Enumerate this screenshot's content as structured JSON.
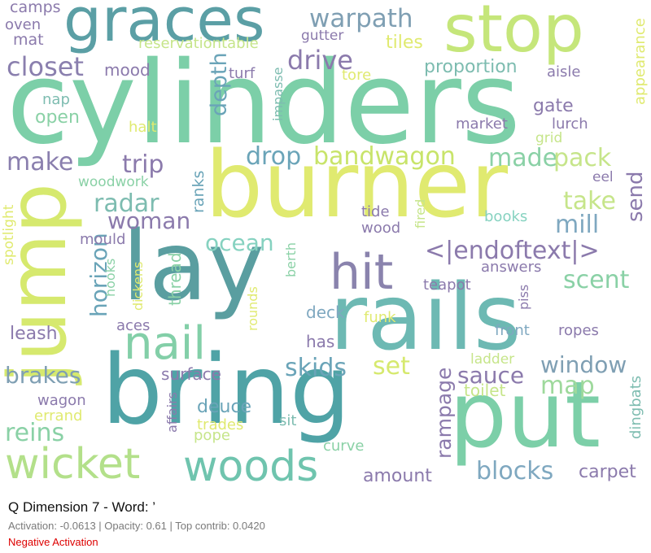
{
  "title": "Q Dimension 7 - Word: ’",
  "info": "Activation: -0.0613 | Opacity: 0.61 | Top contrib: 0.0420",
  "status": "Negative Activation",
  "status_color": "#dd0000",
  "words": [
    {
      "text": "cylinders",
      "color": "#7ccfa8",
      "vertical": false
    },
    {
      "text": "burner",
      "color": "#e0ea70",
      "vertical": false
    },
    {
      "text": "lay",
      "color": "#5a9ea0",
      "vertical": false
    },
    {
      "text": "rails",
      "color": "#6db9b3",
      "vertical": false
    },
    {
      "text": "bring",
      "color": "#4fa3a6",
      "vertical": false
    },
    {
      "text": "put",
      "color": "#7ccfa8",
      "vertical": false
    },
    {
      "text": "jump",
      "color": "#d6e96e",
      "vertical": true
    },
    {
      "text": "graces",
      "color": "#5b9fa5",
      "vertical": false
    },
    {
      "text": "stop",
      "color": "#c5e67a",
      "vertical": false
    },
    {
      "text": "wicket",
      "color": "#b3e08a",
      "vertical": false
    },
    {
      "text": "woods",
      "color": "#6fc4ae",
      "vertical": false
    },
    {
      "text": "hit",
      "color": "#8a83ad",
      "vertical": false
    },
    {
      "text": "nail",
      "color": "#83cfa8",
      "vertical": false
    },
    {
      "text": "closet",
      "color": "#8a7fae",
      "vertical": false
    },
    {
      "text": "drive",
      "color": "#8b7aac",
      "vertical": false
    },
    {
      "text": "warpath",
      "color": "#7f9fb3",
      "vertical": false
    },
    {
      "text": "bandwagon",
      "color": "#c8e46a",
      "vertical": false
    },
    {
      "text": "drop",
      "color": "#6aa4b8",
      "vertical": false
    },
    {
      "text": "made",
      "color": "#8ad1a6",
      "vertical": false
    },
    {
      "text": "pack",
      "color": "#c6e58a",
      "vertical": false
    },
    {
      "text": "trip",
      "color": "#8b7aac",
      "vertical": false
    },
    {
      "text": "make",
      "color": "#8a7fae",
      "vertical": false
    },
    {
      "text": "radar",
      "color": "#7dbcb0",
      "vertical": false
    },
    {
      "text": "woman",
      "color": "#8b7aac",
      "vertical": false
    },
    {
      "text": "take",
      "color": "#c6e58a",
      "vertical": false
    },
    {
      "text": "mill",
      "color": "#7fa8c0",
      "vertical": false
    },
    {
      "text": "send",
      "color": "#8b7aac",
      "vertical": true
    },
    {
      "text": "ocean",
      "color": "#86d2c0",
      "vertical": false
    },
    {
      "text": "<|endoftext|>",
      "color": "#8b7aac",
      "vertical": false
    },
    {
      "text": "scent",
      "color": "#8ad1a6",
      "vertical": false
    },
    {
      "text": "window",
      "color": "#7f9fb3",
      "vertical": false
    },
    {
      "text": "sauce",
      "color": "#8b7aac",
      "vertical": false
    },
    {
      "text": "map",
      "color": "#9ed99c",
      "vertical": false
    },
    {
      "text": "skids",
      "color": "#6aa4b8",
      "vertical": false
    },
    {
      "text": "set",
      "color": "#d6e96e",
      "vertical": false
    },
    {
      "text": "brakes",
      "color": "#7f9fb3",
      "vertical": false
    },
    {
      "text": "reins",
      "color": "#8ad1a6",
      "vertical": false
    },
    {
      "text": "blocks",
      "color": "#7fa8c0",
      "vertical": false
    },
    {
      "text": "rampage",
      "color": "#8b7aac",
      "vertical": true
    },
    {
      "text": "depth",
      "color": "#6aa4b8",
      "vertical": true
    },
    {
      "text": "horizon",
      "color": "#6aa4b8",
      "vertical": true
    },
    {
      "text": "deuce",
      "color": "#6aa4b8",
      "vertical": false
    },
    {
      "text": "amount",
      "color": "#8b7aac",
      "vertical": false
    },
    {
      "text": "carpet",
      "color": "#8b7aac",
      "vertical": false
    },
    {
      "text": "leash",
      "color": "#8b7aac",
      "vertical": false
    },
    {
      "text": "surface",
      "color": "#8b7aac",
      "vertical": false
    },
    {
      "text": "has",
      "color": "#8b7aac",
      "vertical": false
    },
    {
      "text": "toilet",
      "color": "#c6e58a",
      "vertical": false
    },
    {
      "text": "wagon",
      "color": "#8b7aac",
      "vertical": false
    },
    {
      "text": "gate",
      "color": "#8b7aac",
      "vertical": false
    },
    {
      "text": "proportion",
      "color": "#7dbcb0",
      "vertical": false
    },
    {
      "text": "tiles",
      "color": "#e0ea70",
      "vertical": false
    },
    {
      "text": "camps",
      "color": "#8b7aac",
      "vertical": false
    },
    {
      "text": "oven",
      "color": "#8b7aac",
      "vertical": false
    },
    {
      "text": "mat",
      "color": "#8b7aac",
      "vertical": false
    },
    {
      "text": "mood",
      "color": "#8b7aac",
      "vertical": false
    },
    {
      "text": "reservationtable",
      "color": "#c6e58a",
      "vertical": false
    },
    {
      "text": "gutter",
      "color": "#8b7aac",
      "vertical": false
    },
    {
      "text": "turf",
      "color": "#8b7aac",
      "vertical": false
    },
    {
      "text": "tore",
      "color": "#e0ea70",
      "vertical": false
    },
    {
      "text": "aisle",
      "color": "#8b7aac",
      "vertical": false
    },
    {
      "text": "nap",
      "color": "#7dbcb0",
      "vertical": false
    },
    {
      "text": "open",
      "color": "#8ad1a6",
      "vertical": false
    },
    {
      "text": "halt",
      "color": "#e0ea70",
      "vertical": false
    },
    {
      "text": "impasse",
      "color": "#7dbcb0",
      "vertical": true
    },
    {
      "text": "market",
      "color": "#8b7aac",
      "vertical": false
    },
    {
      "text": "lurch",
      "color": "#8b7aac",
      "vertical": false
    },
    {
      "text": "grid",
      "color": "#c6e58a",
      "vertical": false
    },
    {
      "text": "appearance",
      "color": "#e0ea70",
      "vertical": true
    },
    {
      "text": "eel",
      "color": "#8b7aac",
      "vertical": false
    },
    {
      "text": "woodwork",
      "color": "#8ad1a6",
      "vertical": false
    },
    {
      "text": "ranks",
      "color": "#6aa4b8",
      "vertical": true
    },
    {
      "text": "tide",
      "color": "#8b7aac",
      "vertical": false
    },
    {
      "text": "wood",
      "color": "#8b7aac",
      "vertical": false
    },
    {
      "text": "fired",
      "color": "#c6e58a",
      "vertical": true
    },
    {
      "text": "books",
      "color": "#86d2c0",
      "vertical": false
    },
    {
      "text": "mould",
      "color": "#8b7aac",
      "vertical": false
    },
    {
      "text": "spotlight",
      "color": "#e0ea70",
      "vertical": true
    },
    {
      "text": "hooks",
      "color": "#8ad1a6",
      "vertical": true
    },
    {
      "text": "dickens",
      "color": "#e0ea70",
      "vertical": true
    },
    {
      "text": "thread",
      "color": "#8ad1a6",
      "vertical": true
    },
    {
      "text": "berth",
      "color": "#8ad1a6",
      "vertical": true
    },
    {
      "text": "answers",
      "color": "#8b7aac",
      "vertical": false
    },
    {
      "text": "teapot",
      "color": "#8b7aac",
      "vertical": false
    },
    {
      "text": "piss",
      "color": "#8b7aac",
      "vertical": true
    },
    {
      "text": "rounds",
      "color": "#e0ea70",
      "vertical": true
    },
    {
      "text": "deck",
      "color": "#7fa8c0",
      "vertical": false
    },
    {
      "text": "funk",
      "color": "#e0ea70",
      "vertical": false
    },
    {
      "text": "aces",
      "color": "#8b7aac",
      "vertical": false
    },
    {
      "text": "front",
      "color": "#7fa8c0",
      "vertical": false
    },
    {
      "text": "ropes",
      "color": "#8b7aac",
      "vertical": false
    },
    {
      "text": "ladder",
      "color": "#c6e58a",
      "vertical": false
    },
    {
      "text": "dingbats",
      "color": "#7dbcb0",
      "vertical": true
    },
    {
      "text": "affairs",
      "color": "#8b7aac",
      "vertical": true
    },
    {
      "text": "trades",
      "color": "#e0ea70",
      "vertical": false
    },
    {
      "text": "pope",
      "color": "#c6e58a",
      "vertical": false
    },
    {
      "text": "sit",
      "color": "#7dbcb0",
      "vertical": false
    },
    {
      "text": "curve",
      "color": "#8ad1a6",
      "vertical": false
    },
    {
      "text": "errand",
      "color": "#e0ea70",
      "vertical": false
    }
  ]
}
